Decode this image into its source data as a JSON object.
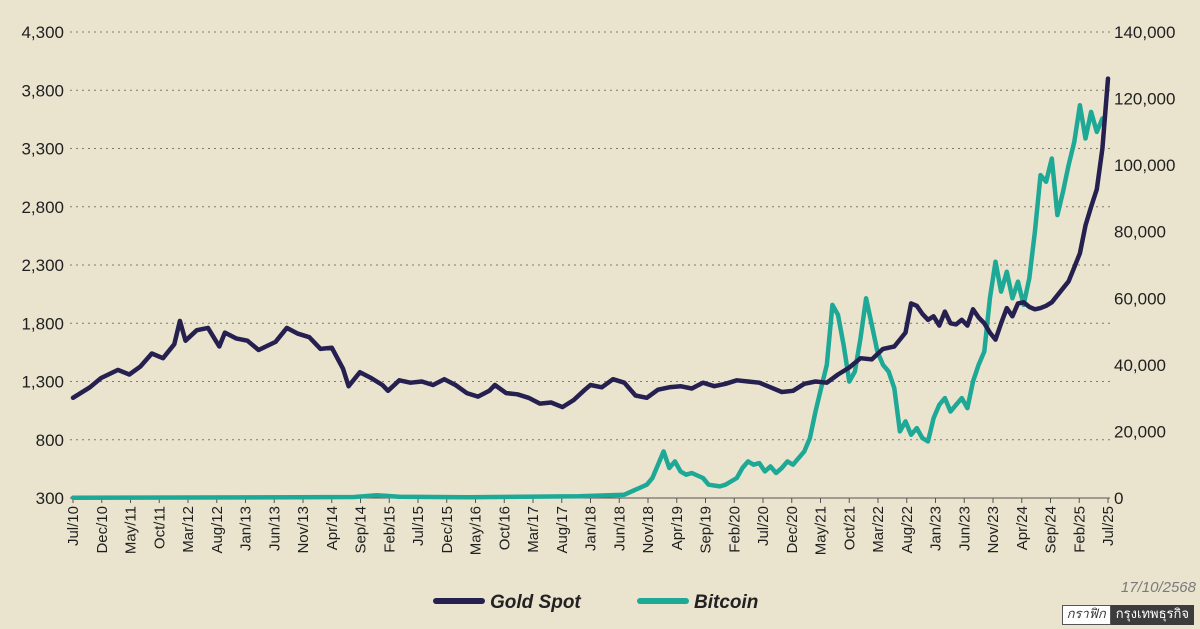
{
  "chart_data": {
    "type": "line",
    "title": "",
    "date_stamp": "17/10/2568",
    "credit": {
      "prefix": "กราฟิก",
      "name": "กรุงเทพธุรกิจ"
    },
    "colors": {
      "gold": "#25204f",
      "bitcoin": "#1ea896",
      "background": "#eae4cf"
    },
    "y_left": {
      "ticks": [
        "4,300",
        "3,800",
        "3,300",
        "2,800",
        "2,300",
        "1,800",
        "1,300",
        "800",
        "300"
      ],
      "range": [
        300,
        4300
      ]
    },
    "y_right": {
      "ticks": [
        "140,000",
        "120,000",
        "100,000",
        "80,000",
        "60,000",
        "40,000",
        "20,000",
        "0"
      ],
      "range": [
        0,
        140000
      ]
    },
    "x_ticks": [
      "Jul/10",
      "Dec/10",
      "May/11",
      "Oct/11",
      "Mar/12",
      "Aug/12",
      "Jan/13",
      "Jun/13",
      "Nov/13",
      "Apr/14",
      "Sep/14",
      "Feb/15",
      "Jul/15",
      "Dec/15",
      "May/16",
      "Oct/16",
      "Mar/17",
      "Aug/17",
      "Jan/18",
      "Jun/18",
      "Nov/18",
      "Apr/19",
      "Sep/19",
      "Feb/20",
      "Jul/20",
      "Dec/20",
      "May/21",
      "Oct/21",
      "Mar/22",
      "Aug/22",
      "Jan/23",
      "Jun/23",
      "Nov/23",
      "Apr/24",
      "Sep/24",
      "Feb/25",
      "Jul/25"
    ],
    "x_index_range": [
      0,
      184
    ],
    "series": [
      {
        "name": "Gold Spot",
        "axis": "left",
        "points": [
          [
            0,
            1160
          ],
          [
            3,
            1250
          ],
          [
            5,
            1330
          ],
          [
            8,
            1400
          ],
          [
            10,
            1360
          ],
          [
            12,
            1430
          ],
          [
            14,
            1540
          ],
          [
            16,
            1500
          ],
          [
            18,
            1620
          ],
          [
            19,
            1820
          ],
          [
            20,
            1650
          ],
          [
            22,
            1740
          ],
          [
            24,
            1760
          ],
          [
            26,
            1600
          ],
          [
            27,
            1720
          ],
          [
            29,
            1670
          ],
          [
            31,
            1650
          ],
          [
            33,
            1570
          ],
          [
            36,
            1640
          ],
          [
            38,
            1760
          ],
          [
            40,
            1710
          ],
          [
            42,
            1680
          ],
          [
            44,
            1580
          ],
          [
            46,
            1590
          ],
          [
            48,
            1410
          ],
          [
            49,
            1260
          ],
          [
            51,
            1380
          ],
          [
            53,
            1330
          ],
          [
            55,
            1270
          ],
          [
            56,
            1220
          ],
          [
            58,
            1310
          ],
          [
            60,
            1290
          ],
          [
            62,
            1300
          ],
          [
            64,
            1270
          ],
          [
            66,
            1320
          ],
          [
            68,
            1270
          ],
          [
            70,
            1200
          ],
          [
            72,
            1170
          ],
          [
            74,
            1220
          ],
          [
            75,
            1270
          ],
          [
            77,
            1200
          ],
          [
            79,
            1190
          ],
          [
            81,
            1160
          ],
          [
            83,
            1110
          ],
          [
            85,
            1120
          ],
          [
            87,
            1080
          ],
          [
            89,
            1140
          ],
          [
            91,
            1230
          ],
          [
            92,
            1270
          ],
          [
            94,
            1250
          ],
          [
            96,
            1320
          ],
          [
            98,
            1290
          ],
          [
            100,
            1180
          ],
          [
            102,
            1160
          ],
          [
            104,
            1230
          ],
          [
            106,
            1250
          ],
          [
            108,
            1260
          ],
          [
            110,
            1240
          ],
          [
            112,
            1290
          ],
          [
            114,
            1260
          ],
          [
            116,
            1280
          ],
          [
            118,
            1310
          ],
          [
            120,
            1300
          ],
          [
            122,
            1290
          ],
          [
            124,
            1250
          ],
          [
            126,
            1210
          ],
          [
            128,
            1220
          ],
          [
            130,
            1280
          ],
          [
            132,
            1300
          ],
          [
            134,
            1290
          ],
          [
            136,
            1360
          ],
          [
            138,
            1420
          ],
          [
            140,
            1500
          ],
          [
            142,
            1490
          ],
          [
            144,
            1580
          ],
          [
            146,
            1600
          ],
          [
            148,
            1720
          ],
          [
            149,
            1970
          ],
          [
            150,
            1950
          ],
          [
            151,
            1880
          ],
          [
            152,
            1830
          ],
          [
            153,
            1860
          ],
          [
            154,
            1780
          ],
          [
            155,
            1900
          ],
          [
            156,
            1800
          ],
          [
            157,
            1790
          ],
          [
            158,
            1830
          ],
          [
            159,
            1780
          ],
          [
            160,
            1920
          ],
          [
            161,
            1850
          ],
          [
            162,
            1800
          ],
          [
            163,
            1720
          ],
          [
            164,
            1660
          ],
          [
            165,
            1800
          ],
          [
            166,
            1930
          ],
          [
            167,
            1860
          ],
          [
            168,
            1970
          ],
          [
            169,
            1980
          ],
          [
            170,
            1940
          ],
          [
            171,
            1920
          ],
          [
            172,
            1930
          ],
          [
            173,
            1950
          ],
          [
            174,
            1980
          ],
          [
            175,
            2040
          ],
          [
            176,
            2100
          ],
          [
            177,
            2160
          ],
          [
            178,
            2280
          ],
          [
            179,
            2400
          ],
          [
            180,
            2640
          ],
          [
            181,
            2800
          ],
          [
            182,
            2950
          ],
          [
            183,
            3300
          ],
          [
            184,
            3900
          ]
        ]
      },
      {
        "name": "Bitcoin",
        "axis": "right",
        "points": [
          [
            0,
            100
          ],
          [
            40,
            200
          ],
          [
            50,
            300
          ],
          [
            54,
            800
          ],
          [
            58,
            400
          ],
          [
            70,
            200
          ],
          [
            90,
            500
          ],
          [
            98,
            1000
          ],
          [
            100,
            2500
          ],
          [
            102,
            4000
          ],
          [
            103,
            6000
          ],
          [
            104,
            10000
          ],
          [
            105,
            14000
          ],
          [
            106,
            9000
          ],
          [
            107,
            11000
          ],
          [
            108,
            8000
          ],
          [
            109,
            7000
          ],
          [
            110,
            7500
          ],
          [
            112,
            6000
          ],
          [
            113,
            4000
          ],
          [
            115,
            3500
          ],
          [
            116,
            4000
          ],
          [
            118,
            6000
          ],
          [
            119,
            9000
          ],
          [
            120,
            11000
          ],
          [
            121,
            10000
          ],
          [
            122,
            10500
          ],
          [
            123,
            8000
          ],
          [
            124,
            9500
          ],
          [
            125,
            7500
          ],
          [
            126,
            9000
          ],
          [
            127,
            11000
          ],
          [
            128,
            10000
          ],
          [
            129,
            12000
          ],
          [
            130,
            14000
          ],
          [
            131,
            18000
          ],
          [
            132,
            26000
          ],
          [
            133,
            33000
          ],
          [
            134,
            40000
          ],
          [
            135,
            58000
          ],
          [
            136,
            55000
          ],
          [
            137,
            46000
          ],
          [
            138,
            35000
          ],
          [
            139,
            38000
          ],
          [
            140,
            48000
          ],
          [
            141,
            60000
          ],
          [
            142,
            52000
          ],
          [
            143,
            44000
          ],
          [
            144,
            40000
          ],
          [
            145,
            38000
          ],
          [
            146,
            33000
          ],
          [
            147,
            20000
          ],
          [
            148,
            23000
          ],
          [
            149,
            19000
          ],
          [
            150,
            21000
          ],
          [
            151,
            18000
          ],
          [
            152,
            17000
          ],
          [
            153,
            24000
          ],
          [
            154,
            28000
          ],
          [
            155,
            30000
          ],
          [
            156,
            26000
          ],
          [
            157,
            28000
          ],
          [
            158,
            30000
          ],
          [
            159,
            27000
          ],
          [
            160,
            35000
          ],
          [
            161,
            40000
          ],
          [
            162,
            44000
          ],
          [
            163,
            60000
          ],
          [
            164,
            71000
          ],
          [
            165,
            62000
          ],
          [
            166,
            68000
          ],
          [
            167,
            60000
          ],
          [
            168,
            65000
          ],
          [
            169,
            58000
          ],
          [
            170,
            66000
          ],
          [
            171,
            80000
          ],
          [
            172,
            97000
          ],
          [
            173,
            95000
          ],
          [
            174,
            102000
          ],
          [
            175,
            85000
          ],
          [
            176,
            92000
          ],
          [
            177,
            100000
          ],
          [
            178,
            107000
          ],
          [
            179,
            118000
          ],
          [
            180,
            108000
          ],
          [
            181,
            116000
          ],
          [
            182,
            110000
          ],
          [
            183,
            114000
          ]
        ]
      }
    ]
  }
}
